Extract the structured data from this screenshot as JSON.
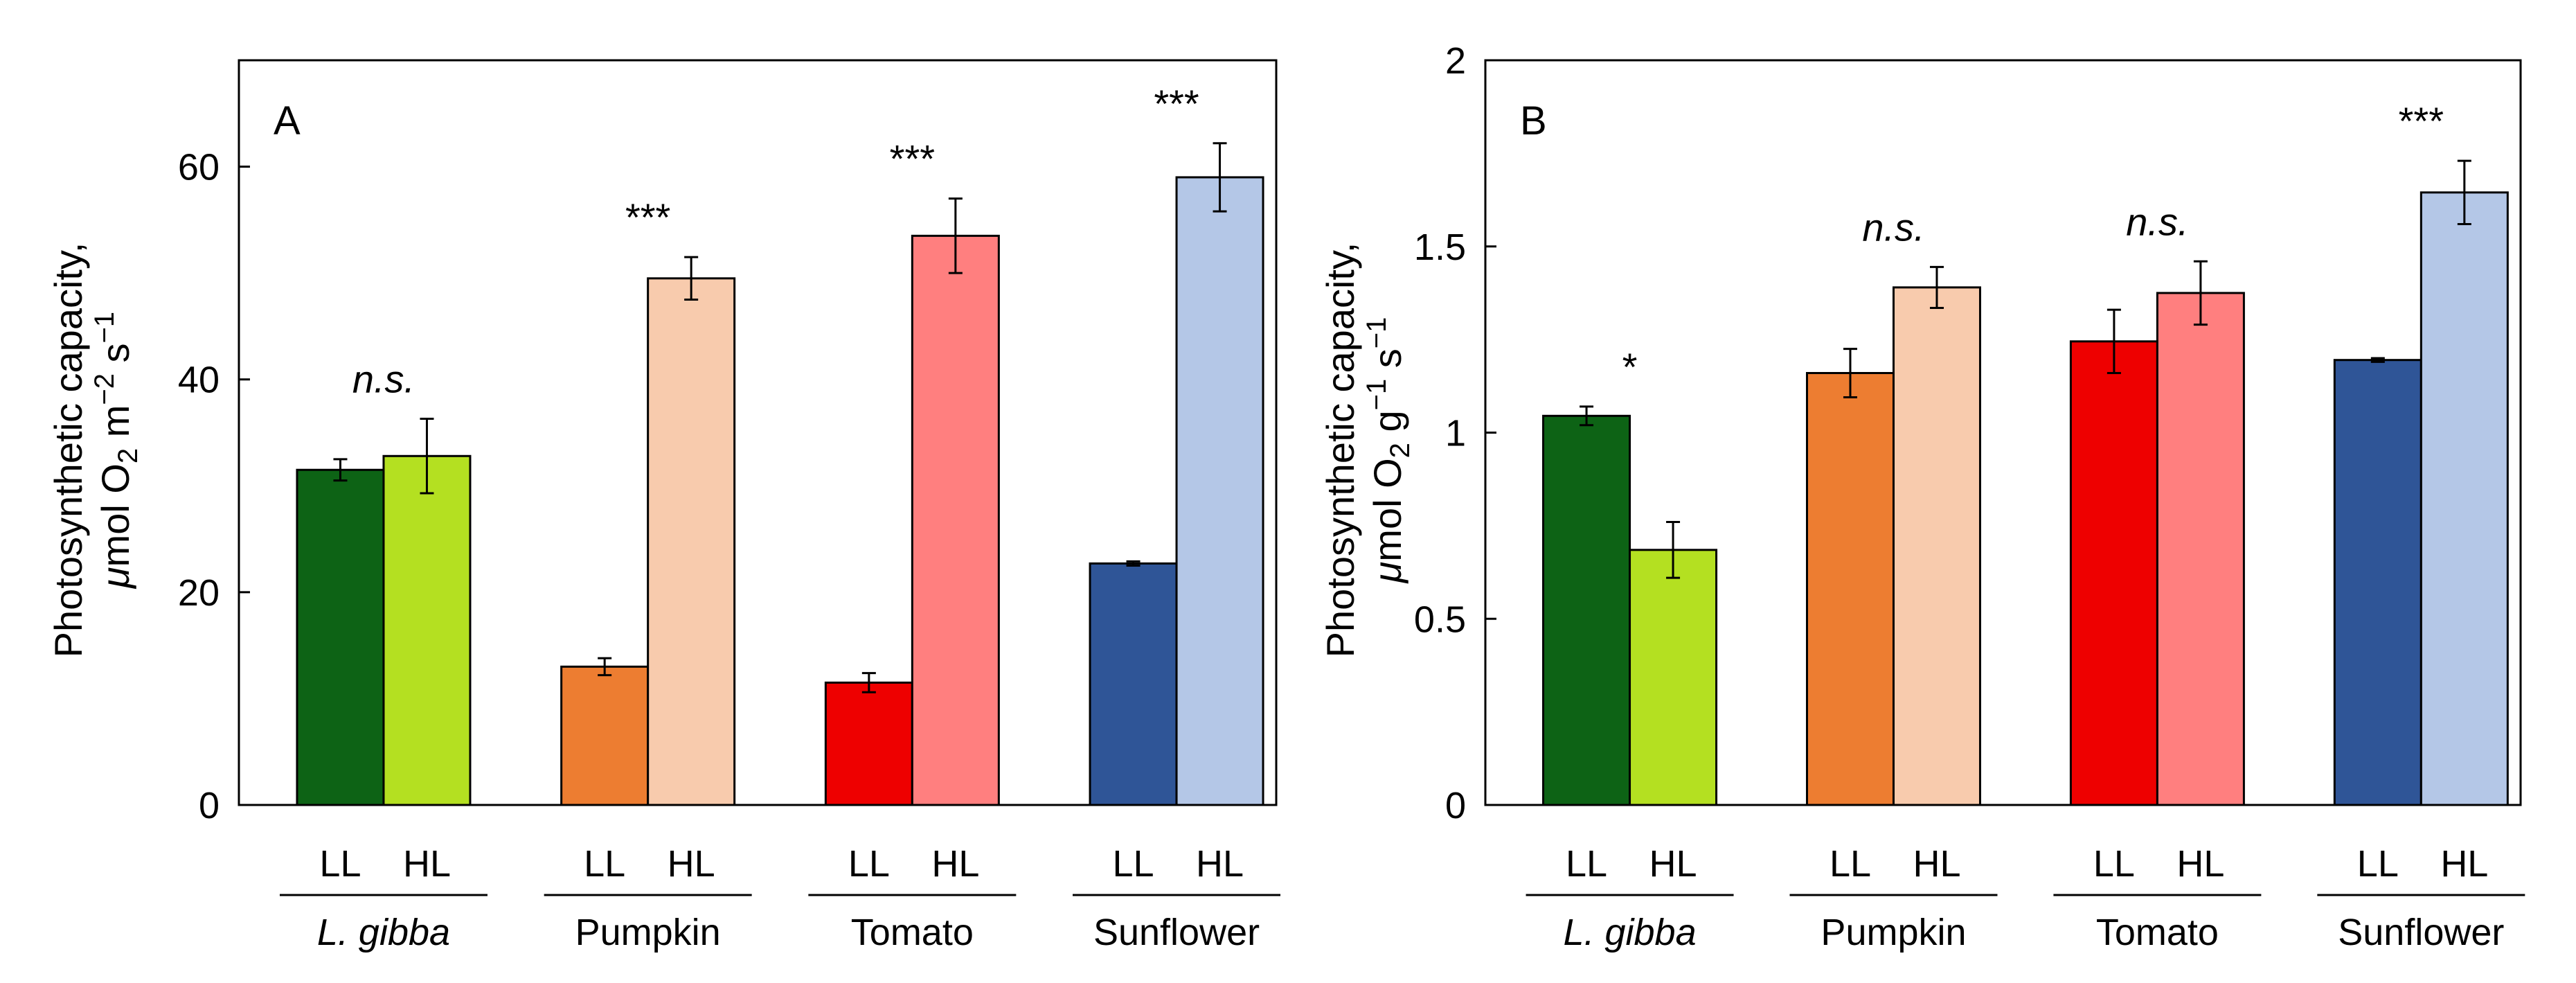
{
  "chart_data": [
    {
      "type": "bar",
      "panel": "A",
      "ylabel_line1": "Photosynthetic capacity,",
      "ylabel_line2": {
        "mu": "μ",
        "a": "mol O",
        "sub": "2",
        "b": " m",
        "sup1": "−2",
        "c": " s",
        "sup2": "−1"
      },
      "ylim": [
        0,
        70
      ],
      "yticks": [
        0,
        20,
        40,
        60
      ],
      "ytick_labels": [
        "0",
        "20",
        "40",
        "60"
      ],
      "groups": [
        {
          "name": "L. gibba",
          "italic": true,
          "sig": "n.s.",
          "sig_italic": true,
          "bars": [
            {
              "label": "LL",
              "value": 31.5,
              "error": 1.0,
              "color": "#0d6315"
            },
            {
              "label": "HL",
              "value": 32.8,
              "error": 3.5,
              "color": "#b4e021"
            }
          ]
        },
        {
          "name": "Pumpkin",
          "italic": false,
          "sig": "***",
          "sig_italic": false,
          "bars": [
            {
              "label": "LL",
              "value": 13.0,
              "error": 0.8,
              "color": "#ed7d31"
            },
            {
              "label": "HL",
              "value": 49.5,
              "error": 2.0,
              "color": "#f8cbad"
            }
          ]
        },
        {
          "name": "Tomato",
          "italic": false,
          "sig": "***",
          "sig_italic": false,
          "bars": [
            {
              "label": "LL",
              "value": 11.5,
              "error": 0.9,
              "color": "#ee0000"
            },
            {
              "label": "HL",
              "value": 53.5,
              "error": 3.5,
              "color": "#ff7f7f"
            }
          ]
        },
        {
          "name": "Sunflower",
          "italic": false,
          "sig": "***",
          "sig_italic": false,
          "bars": [
            {
              "label": "LL",
              "value": 22.7,
              "error": 0.2,
              "color": "#2f5597"
            },
            {
              "label": "HL",
              "value": 59.0,
              "error": 3.2,
              "color": "#b4c7e7"
            }
          ]
        }
      ]
    },
    {
      "type": "bar",
      "panel": "B",
      "ylabel_line1": "Photosynthetic capacity,",
      "ylabel_line2": {
        "mu": "μ",
        "a": "mol O",
        "sub": "2",
        "b": " g",
        "sup1": "−1",
        "c": " s",
        "sup2": "−1"
      },
      "ylim": [
        0,
        2
      ],
      "yticks": [
        0,
        0.5,
        1,
        1.5,
        2
      ],
      "ytick_labels": [
        "0",
        "0.5",
        "1",
        "1.5",
        "2"
      ],
      "groups": [
        {
          "name": "L. gibba",
          "italic": true,
          "sig": "*",
          "sig_italic": false,
          "bars": [
            {
              "label": "LL",
              "value": 1.045,
              "error": 0.025,
              "color": "#0d6315"
            },
            {
              "label": "HL",
              "value": 0.685,
              "error": 0.075,
              "color": "#b4e021"
            }
          ]
        },
        {
          "name": "Pumpkin",
          "italic": false,
          "sig": "n.s.",
          "sig_italic": true,
          "bars": [
            {
              "label": "LL",
              "value": 1.16,
              "error": 0.065,
              "color": "#ed7d31"
            },
            {
              "label": "HL",
              "value": 1.39,
              "error": 0.055,
              "color": "#f8cbad"
            }
          ]
        },
        {
          "name": "Tomato",
          "italic": false,
          "sig": "n.s.",
          "sig_italic": true,
          "bars": [
            {
              "label": "LL",
              "value": 1.245,
              "error": 0.085,
              "color": "#ee0000"
            },
            {
              "label": "HL",
              "value": 1.375,
              "error": 0.085,
              "color": "#ff7f7f"
            }
          ]
        },
        {
          "name": "Sunflower",
          "italic": false,
          "sig": "***",
          "sig_italic": false,
          "bars": [
            {
              "label": "LL",
              "value": 1.195,
              "error": 0.005,
              "color": "#2f5597"
            },
            {
              "label": "HL",
              "value": 1.645,
              "error": 0.085,
              "color": "#b4c7e7"
            }
          ]
        }
      ]
    }
  ]
}
